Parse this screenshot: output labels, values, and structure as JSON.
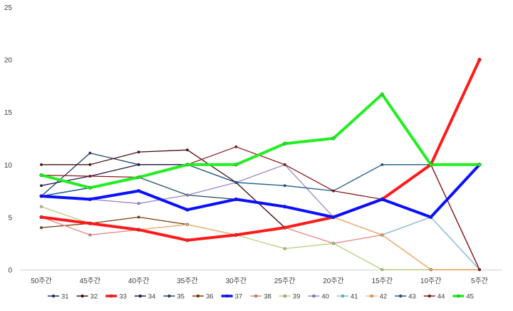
{
  "chart_data": {
    "type": "line",
    "title": "",
    "xlabel": "",
    "ylabel": "",
    "ylim": [
      0,
      25
    ],
    "yticks": [
      0,
      5,
      10,
      15,
      20,
      25
    ],
    "grid": false,
    "legend_position": "bottom",
    "categories": [
      "50주간",
      "45주간",
      "40주간",
      "35주간",
      "30주간",
      "25주간",
      "20주간",
      "15주간",
      "10주간",
      "5주간"
    ],
    "series": [
      {
        "name": "31",
        "color": "#1f3864",
        "width": 1.3,
        "values": [
          7,
          11.1,
          10,
          10,
          8.3,
          4,
          5,
          6.7,
          5,
          10
        ]
      },
      {
        "name": "32",
        "color": "#4a0f0f",
        "width": 1.3,
        "values": [
          10,
          10,
          11.2,
          11.4,
          8.3,
          4,
          5,
          6.7,
          10,
          0
        ]
      },
      {
        "name": "33",
        "color": "#ff1a1a",
        "width": 4,
        "values": [
          5,
          4.4,
          3.8,
          2.8,
          3.3,
          4,
          5,
          6.7,
          10,
          20
        ]
      },
      {
        "name": "34",
        "color": "#2b1a4a",
        "width": 1.3,
        "values": [
          8,
          8.9,
          10,
          10,
          10,
          12,
          12.5,
          16.7,
          10,
          10
        ]
      },
      {
        "name": "35",
        "color": "#1f4e5a",
        "width": 1.3,
        "values": [
          7,
          7.8,
          8.8,
          7.1,
          6.7,
          6,
          5,
          6.7,
          5,
          10
        ]
      },
      {
        "name": "36",
        "color": "#7b3a08",
        "width": 1.3,
        "values": [
          4,
          4.4,
          5,
          4.3,
          3.3,
          4,
          5,
          3.3,
          0,
          0
        ]
      },
      {
        "name": "37",
        "color": "#0a10ff",
        "width": 4,
        "values": [
          7,
          6.7,
          7.5,
          5.7,
          6.7,
          6,
          5,
          6.7,
          5,
          10
        ]
      },
      {
        "name": "38",
        "color": "#e8847e",
        "width": 1.3,
        "values": [
          5,
          3.3,
          3.8,
          2.8,
          3.3,
          4,
          2.5,
          3.3,
          5,
          0
        ]
      },
      {
        "name": "39",
        "color": "#b3d07a",
        "width": 1.3,
        "values": [
          6,
          4.4,
          3.8,
          4.3,
          3.3,
          2,
          2.5,
          0,
          0,
          0
        ]
      },
      {
        "name": "40",
        "color": "#9b87c4",
        "width": 1.3,
        "values": [
          7,
          6.7,
          6.3,
          7.1,
          8.3,
          10,
          5,
          6.7,
          5,
          10
        ]
      },
      {
        "name": "41",
        "color": "#7fc3d9",
        "width": 1.3,
        "values": [
          5,
          4.4,
          3.8,
          4.3,
          3.3,
          4,
          5,
          3.3,
          5,
          0
        ]
      },
      {
        "name": "42",
        "color": "#f7b06b",
        "width": 1.3,
        "values": [
          5,
          4.4,
          3.8,
          4.3,
          3.3,
          4,
          5,
          3.3,
          0,
          0
        ]
      },
      {
        "name": "43",
        "color": "#1e5a8a",
        "width": 1.3,
        "values": [
          7,
          7.8,
          8.8,
          10,
          8.3,
          8,
          7.5,
          10,
          10,
          10
        ]
      },
      {
        "name": "44",
        "color": "#8b1a1a",
        "width": 1.3,
        "values": [
          9,
          8.9,
          8.8,
          10,
          11.7,
          10,
          7.5,
          6.7,
          10,
          0
        ]
      },
      {
        "name": "45",
        "color": "#22ee22",
        "width": 4,
        "values": [
          9,
          7.8,
          8.8,
          10,
          10,
          12,
          12.5,
          16.7,
          10,
          10
        ]
      }
    ]
  }
}
